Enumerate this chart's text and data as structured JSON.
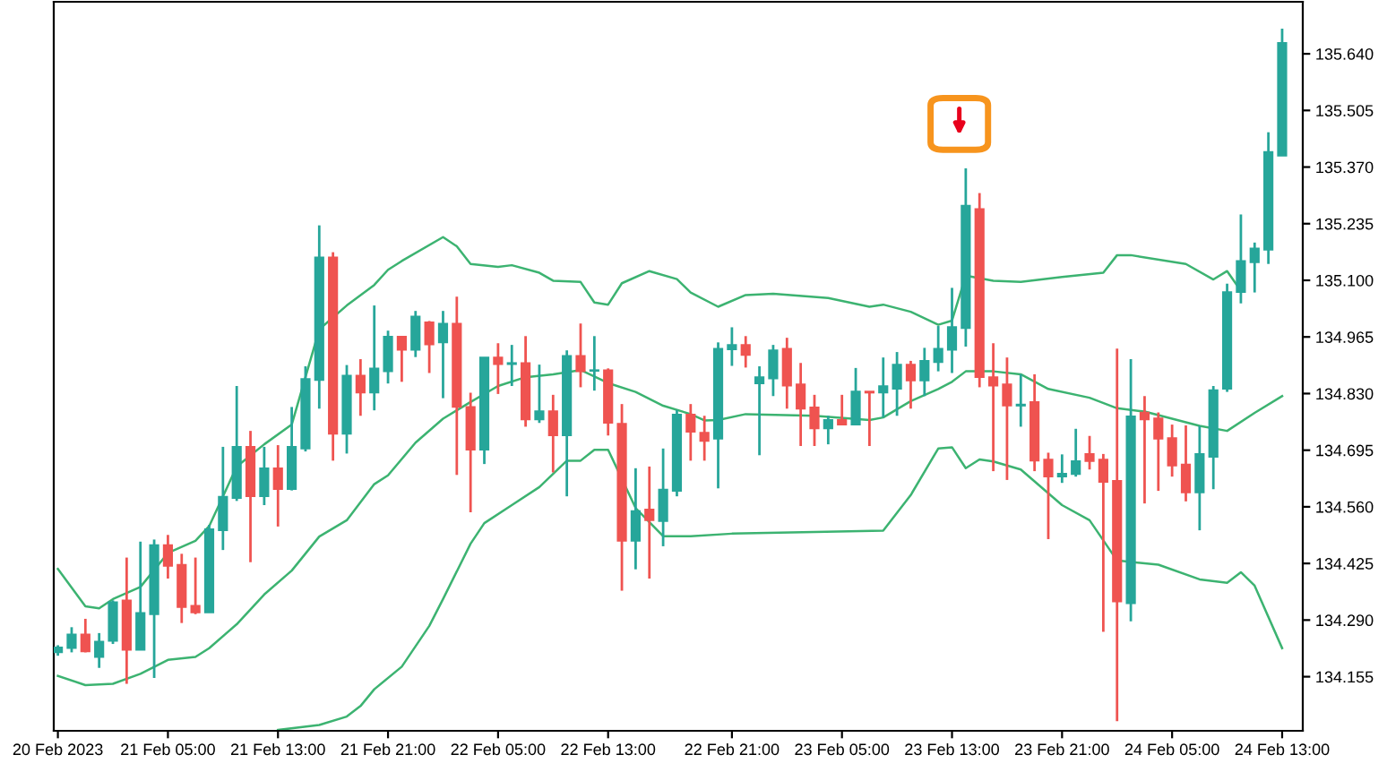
{
  "chart_data": {
    "type": "candlestick",
    "categories": [
      "20 Feb 2023",
      null,
      null,
      null,
      null,
      null,
      null,
      null,
      "21 Feb 05:00",
      null,
      null,
      null,
      null,
      null,
      null,
      null,
      "21 Feb 13:00",
      null,
      null,
      null,
      null,
      null,
      null,
      null,
      "21 Feb 21:00",
      null,
      null,
      null,
      null,
      null,
      null,
      null,
      "22 Feb 05:00",
      null,
      null,
      null,
      null,
      null,
      null,
      null,
      "22 Feb 13:00",
      null,
      null,
      null,
      null,
      null,
      null,
      null,
      null,
      "22 Feb 21:00",
      null,
      null,
      null,
      null,
      null,
      null,
      null,
      "23 Feb 05:00",
      null,
      null,
      null,
      null,
      null,
      null,
      null,
      "23 Feb 13:00",
      null,
      null,
      null,
      null,
      null,
      null,
      null,
      "23 Feb 21:00",
      null,
      null,
      null,
      null,
      null,
      null,
      null,
      "24 Feb 05:00",
      null,
      null,
      null,
      null,
      null,
      null,
      null,
      "24 Feb 13:00"
    ],
    "ohlc": [
      [
        134.213,
        134.23,
        134.205,
        134.225
      ],
      [
        134.223,
        134.273,
        134.213,
        134.256
      ],
      [
        134.256,
        134.293,
        134.213,
        134.215
      ],
      [
        134.202,
        134.259,
        134.176,
        134.239
      ],
      [
        134.24,
        134.337,
        134.233,
        134.333
      ],
      [
        134.337,
        134.439,
        134.138,
        134.219
      ],
      [
        134.219,
        134.477,
        134.219,
        134.307
      ],
      [
        134.304,
        134.482,
        134.152,
        134.469
      ],
      [
        134.469,
        134.493,
        134.389,
        134.419
      ],
      [
        134.422,
        134.448,
        134.283,
        134.321
      ],
      [
        134.324,
        134.439,
        134.304,
        134.308
      ],
      [
        134.308,
        134.517,
        134.308,
        134.507
      ],
      [
        134.504,
        134.703,
        134.457,
        134.584
      ],
      [
        134.581,
        134.848,
        134.574,
        134.703
      ],
      [
        134.703,
        134.741,
        134.428,
        134.585
      ],
      [
        134.585,
        134.703,
        134.564,
        134.652
      ],
      [
        134.652,
        134.707,
        134.513,
        134.602
      ],
      [
        134.602,
        134.798,
        134.599,
        134.703
      ],
      [
        134.699,
        134.895,
        134.692,
        134.865
      ],
      [
        134.862,
        135.231,
        134.794,
        135.155
      ],
      [
        135.155,
        135.167,
        134.67,
        134.734
      ],
      [
        134.734,
        134.898,
        134.687,
        134.873
      ],
      [
        134.873,
        134.912,
        134.777,
        134.832
      ],
      [
        134.832,
        135.04,
        134.79,
        134.89
      ],
      [
        134.883,
        134.98,
        134.854,
        134.966
      ],
      [
        134.966,
        134.966,
        134.858,
        134.934
      ],
      [
        134.934,
        135.027,
        134.917,
        135.014
      ],
      [
        135.0,
        135.003,
        134.879,
        134.947
      ],
      [
        134.952,
        135.027,
        134.819,
        134.997
      ],
      [
        134.997,
        135.061,
        134.636,
        134.798
      ],
      [
        134.798,
        134.832,
        134.547,
        134.696
      ],
      [
        134.696,
        134.916,
        134.662,
        134.916
      ],
      [
        134.916,
        134.95,
        134.829,
        134.9
      ],
      [
        134.9,
        134.946,
        134.848,
        134.903
      ],
      [
        134.903,
        134.967,
        134.751,
        134.768
      ],
      [
        134.768,
        134.899,
        134.76,
        134.788
      ],
      [
        134.788,
        134.827,
        134.642,
        134.73
      ],
      [
        134.73,
        134.933,
        134.585,
        134.92
      ],
      [
        134.92,
        134.997,
        134.845,
        134.883
      ],
      [
        134.884,
        134.967,
        134.837,
        134.886
      ],
      [
        134.886,
        134.89,
        134.73,
        134.76
      ],
      [
        134.758,
        134.805,
        134.36,
        134.479
      ],
      [
        134.479,
        134.652,
        134.411,
        134.55
      ],
      [
        134.554,
        134.656,
        134.389,
        134.528
      ],
      [
        134.526,
        134.699,
        134.466,
        134.601
      ],
      [
        134.598,
        134.791,
        134.585,
        134.78
      ],
      [
        134.78,
        134.805,
        134.67,
        134.739
      ],
      [
        134.737,
        134.777,
        134.67,
        134.717
      ],
      [
        134.722,
        134.952,
        134.604,
        134.937
      ],
      [
        134.935,
        134.988,
        134.896,
        134.946
      ],
      [
        134.946,
        134.967,
        134.892,
        134.922
      ],
      [
        134.854,
        134.895,
        134.683,
        134.869
      ],
      [
        134.866,
        134.946,
        134.824,
        134.933
      ],
      [
        134.937,
        134.963,
        134.794,
        134.849
      ],
      [
        134.852,
        134.903,
        134.705,
        134.794
      ],
      [
        134.797,
        134.827,
        134.705,
        134.747
      ],
      [
        134.747,
        134.777,
        134.709,
        134.767
      ],
      [
        134.767,
        134.827,
        134.756,
        134.756
      ],
      [
        134.756,
        134.891,
        134.756,
        134.835
      ],
      [
        134.835,
        134.835,
        134.705,
        134.832
      ],
      [
        134.832,
        134.916,
        134.773,
        134.848
      ],
      [
        134.841,
        134.929,
        134.777,
        134.899
      ],
      [
        134.899,
        134.908,
        134.794,
        134.861
      ],
      [
        134.861,
        134.939,
        134.824,
        134.908
      ],
      [
        134.905,
        134.991,
        134.883,
        134.937
      ],
      [
        134.934,
        135.082,
        134.879,
        134.989
      ],
      [
        134.986,
        135.367,
        134.942,
        135.278
      ],
      [
        135.27,
        135.308,
        134.845,
        134.869
      ],
      [
        134.869,
        134.95,
        134.645,
        134.849
      ],
      [
        134.852,
        134.916,
        134.624,
        134.801
      ],
      [
        134.801,
        134.876,
        134.751,
        134.804
      ],
      [
        134.81,
        134.876,
        134.645,
        134.67
      ],
      [
        134.673,
        134.689,
        134.483,
        134.632
      ],
      [
        134.632,
        134.685,
        134.617,
        134.639
      ],
      [
        134.638,
        134.746,
        134.632,
        134.669
      ],
      [
        134.686,
        134.729,
        134.649,
        134.669
      ],
      [
        134.673,
        134.686,
        134.262,
        134.619
      ],
      [
        134.622,
        134.937,
        134.049,
        134.334
      ],
      [
        134.33,
        134.912,
        134.287,
        134.776
      ],
      [
        134.785,
        134.824,
        134.568,
        134.768
      ],
      [
        134.771,
        134.785,
        134.598,
        134.722
      ],
      [
        134.724,
        134.756,
        134.632,
        134.658
      ],
      [
        134.661,
        134.754,
        134.573,
        134.594
      ],
      [
        134.594,
        134.753,
        134.504,
        134.686
      ],
      [
        134.679,
        134.848,
        134.602,
        134.838
      ],
      [
        134.841,
        135.092,
        134.834,
        135.072
      ],
      [
        135.072,
        135.257,
        135.045,
        135.146
      ],
      [
        135.143,
        135.19,
        135.071,
        135.176
      ],
      [
        135.173,
        135.453,
        135.139,
        135.406
      ],
      [
        135.397,
        135.7,
        135.397,
        135.666
      ]
    ],
    "colors": [
      "#26a69a",
      "#26a69a",
      "#ef5350",
      "#26a69a",
      "#26a69a",
      "#ef5350",
      "#26a69a",
      "#26a69a",
      "#ef5350",
      "#ef5350",
      "#ef5350",
      "#26a69a",
      "#26a69a",
      "#26a69a",
      "#ef5350",
      "#26a69a",
      "#ef5350",
      "#26a69a",
      "#26a69a",
      "#26a69a",
      "#ef5350",
      "#26a69a",
      "#ef5350",
      "#26a69a",
      "#26a69a",
      "#ef5350",
      "#26a69a",
      "#ef5350",
      "#26a69a",
      "#ef5350",
      "#ef5350",
      "#26a69a",
      "#ef5350",
      "#26a69a",
      "#ef5350",
      "#26a69a",
      "#ef5350",
      "#26a69a",
      "#ef5350",
      "#26a69a",
      "#ef5350",
      "#ef5350",
      "#26a69a",
      "#ef5350",
      "#26a69a",
      "#26a69a",
      "#ef5350",
      "#ef5350",
      "#26a69a",
      "#26a69a",
      "#ef5350",
      "#26a69a",
      "#26a69a",
      "#ef5350",
      "#ef5350",
      "#ef5350",
      "#26a69a",
      "#ef5350",
      "#26a69a",
      "#ef5350",
      "#26a69a",
      "#26a69a",
      "#ef5350",
      "#26a69a",
      "#26a69a",
      "#26a69a",
      "#26a69a",
      "#ef5350",
      "#ef5350",
      "#ef5350",
      "#26a69a",
      "#ef5350",
      "#ef5350",
      "#26a69a",
      "#26a69a",
      "#ef5350",
      "#ef5350",
      "#ef5350",
      "#26a69a",
      "#ef5350",
      "#ef5350",
      "#ef5350",
      "#ef5350",
      "#26a69a",
      "#26a69a",
      "#26a69a",
      "#26a69a",
      "#26a69a",
      "#26a69a",
      "#26a69a"
    ],
    "series": [
      {
        "type": "line",
        "color": "#3cb371",
        "values": [
          134.412,
          null,
          134.323,
          134.318,
          134.34,
          null,
          134.369,
          null,
          134.45,
          null,
          134.479,
          134.514,
          null,
          134.656,
          null,
          134.709,
          null,
          134.756,
          null,
          134.983,
          null,
          135.04,
          null,
          135.089,
          135.125,
          135.146,
          null,
          null,
          135.203,
          135.181,
          135.139,
          null,
          135.132,
          135.136,
          null,
          135.118,
          135.099,
          null,
          135.096,
          135.047,
          135.042,
          135.093,
          null,
          135.122,
          null,
          135.103,
          135.071,
          null,
          135.037,
          null,
          135.065,
          null,
          135.068,
          null,
          null,
          null,
          135.058,
          null,
          null,
          135.037,
          135.042,
          null,
          135.025,
          null,
          134.994,
          135.004,
          135.111,
          null,
          135.099,
          null,
          135.096,
          null,
          null,
          135.108,
          null,
          null,
          135.118,
          135.16,
          135.16,
          null,
          null,
          null,
          135.139,
          null,
          135.102,
          135.122,
          135.075,
          null,
          null,
          null
        ]
      },
      {
        "type": "line",
        "color": "#3cb371",
        "values": [
          134.157,
          null,
          134.135,
          null,
          134.138,
          null,
          134.162,
          null,
          134.195,
          null,
          134.202,
          134.223,
          null,
          134.28,
          null,
          134.351,
          null,
          134.408,
          null,
          134.489,
          null,
          134.528,
          null,
          134.614,
          134.635,
          null,
          134.713,
          null,
          134.77,
          null,
          134.81,
          null,
          134.848,
          null,
          134.869,
          null,
          134.876,
          null,
          134.886,
          null,
          134.855,
          null,
          134.834,
          null,
          134.801,
          null,
          134.781,
          134.766,
          134.767,
          null,
          134.781,
          null,
          null,
          null,
          null,
          134.777,
          null,
          null,
          null,
          134.767,
          134.773,
          null,
          134.812,
          null,
          134.841,
          134.858,
          134.883,
          null,
          134.883,
          null,
          134.876,
          null,
          134.841,
          null,
          null,
          134.82,
          null,
          134.795,
          null,
          134.787,
          null,
          null,
          null,
          134.753,
          null,
          134.741,
          null,
          134.784,
          null,
          134.824
        ]
      },
      {
        "type": "line",
        "color": "#3cb371",
        "values": [
          null,
          null,
          null,
          null,
          null,
          null,
          null,
          null,
          null,
          null,
          null,
          null,
          null,
          null,
          null,
          null,
          134.028,
          null,
          null,
          134.04,
          null,
          134.06,
          134.085,
          134.125,
          null,
          134.179,
          null,
          134.276,
          134.34,
          null,
          134.472,
          134.521,
          null,
          134.564,
          null,
          134.607,
          null,
          134.67,
          134.67,
          134.696,
          134.696,
          null,
          134.557,
          null,
          134.49,
          null,
          134.49,
          null,
          null,
          134.496,
          null,
          null,
          null,
          null,
          null,
          134.5,
          null,
          null,
          null,
          null,
          134.503,
          null,
          134.588,
          null,
          134.699,
          134.702,
          134.652,
          134.673,
          134.668,
          null,
          134.649,
          null,
          null,
          134.564,
          null,
          134.528,
          null,
          134.432,
          null,
          null,
          134.422,
          null,
          null,
          134.387,
          null,
          134.379,
          134.404,
          134.372,
          null,
          134.223
        ]
      }
    ],
    "ylim": [
      134.026,
      135.764
    ],
    "yticks": [
      {
        "value": 135.64,
        "label": "135.640"
      },
      {
        "value": 135.505,
        "label": "135.505"
      },
      {
        "value": 135.37,
        "label": "135.370"
      },
      {
        "value": 135.235,
        "label": "135.235"
      },
      {
        "value": 135.1,
        "label": "135.100"
      },
      {
        "value": 134.965,
        "label": "134.965"
      },
      {
        "value": 134.83,
        "label": "134.830"
      },
      {
        "value": 134.695,
        "label": "134.695"
      },
      {
        "value": 134.56,
        "label": "134.560"
      },
      {
        "value": 134.425,
        "label": "134.425"
      },
      {
        "value": 134.29,
        "label": "134.290"
      },
      {
        "value": 134.155,
        "label": "134.155"
      }
    ]
  }
}
